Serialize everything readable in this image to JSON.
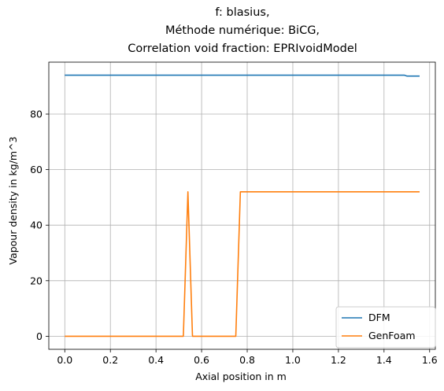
{
  "chart_data": {
    "type": "line",
    "title_lines": [
      "f: blasius,",
      "Méthode numérique: BiCG,",
      "Correlation void fraction: EPRIvoidModel"
    ],
    "xlabel": "Axial position in m",
    "ylabel": "Vapour density in kg/m^3",
    "xlim": [
      -0.07,
      1.625
    ],
    "ylim": [
      -4.7,
      98.7
    ],
    "xticks": [
      0.0,
      0.2,
      0.4,
      0.6,
      0.8,
      1.0,
      1.2,
      1.4,
      1.6
    ],
    "xtick_labels": [
      "0.0",
      "0.2",
      "0.4",
      "0.6",
      "0.8",
      "1.0",
      "1.2",
      "1.4",
      "1.6"
    ],
    "yticks": [
      0,
      20,
      40,
      60,
      80
    ],
    "ytick_labels": [
      "0",
      "20",
      "40",
      "60",
      "80"
    ],
    "grid": true,
    "legend_position": "lower-right",
    "series": [
      {
        "name": "DFM",
        "color": "#1f77b4",
        "x": [
          0.0,
          1.49,
          1.5,
          1.556
        ],
        "y": [
          94.0,
          94.0,
          93.7,
          93.7
        ]
      },
      {
        "name": "GenFoam",
        "color": "#ff7f0e",
        "x": [
          0.0,
          0.52,
          0.54,
          0.56,
          0.75,
          0.77,
          1.556
        ],
        "y": [
          0.0,
          0.0,
          52.0,
          0.0,
          0.0,
          52.0,
          52.0
        ]
      }
    ]
  }
}
